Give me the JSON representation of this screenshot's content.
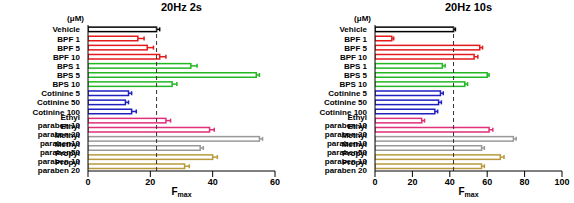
{
  "chart_data": [
    {
      "type": "bar",
      "title": "20Hz 2s",
      "orientation": "horizontal",
      "x_label": "Fmax",
      "y_label": "(μM)",
      "categories": [
        "Vehicle",
        "BPF 1",
        "BPF 5",
        "BPF 10",
        "BPS 1",
        "BPS 5",
        "BPS 10",
        "Cotinine 5",
        "Cotinine 50",
        "Cotinine 100",
        "Ethyl paraben 10",
        "Ethyl paraben 20",
        "Methyl paraben10",
        "Methyl paraben50",
        "Propyl paraben 10",
        "Propyl paraben 20"
      ],
      "values": [
        22,
        16,
        19,
        23,
        33,
        54,
        27,
        13,
        12,
        14,
        25,
        39,
        55,
        36,
        40,
        31
      ],
      "errors": [
        1,
        2,
        2,
        2,
        2,
        1,
        1.5,
        1,
        1,
        1.5,
        1.5,
        1.5,
        1,
        1,
        1.5,
        1.5
      ],
      "colors": [
        "#000000",
        "#e41a1c",
        "#e41a1c",
        "#e41a1c",
        "#22b822",
        "#22b822",
        "#22b822",
        "#2020c0",
        "#2020c0",
        "#2020c0",
        "#e0307a",
        "#e0307a",
        "#999999",
        "#999999",
        "#b89a3c",
        "#b89a3c"
      ],
      "reference_line": 22,
      "xlim": [
        0,
        60
      ],
      "xticks": [
        0,
        20,
        40,
        60
      ],
      "grid": false
    },
    {
      "type": "bar",
      "title": "20Hz 10s",
      "orientation": "horizontal",
      "x_label": "Fmax",
      "y_label": "(μM)",
      "categories": [
        "Vehicle",
        "BPF 1",
        "BPF 5",
        "BPF 10",
        "BPS 1",
        "BPS 5",
        "BPS 10",
        "Cotinine 5",
        "Cotinine 50",
        "Cotinine 100",
        "Ethyl paraben 10",
        "Ethyl paraben 20",
        "Methyl paraben10",
        "Methyl paraben50",
        "Propyl paraben 10",
        "Propyl paraben 20"
      ],
      "values": [
        42,
        9,
        56,
        53,
        36,
        60,
        48,
        35,
        34,
        32,
        25,
        61,
        74,
        57,
        67,
        57
      ],
      "errors": [
        1,
        1,
        1.5,
        2,
        1.5,
        1,
        1.5,
        1.5,
        1.5,
        1.5,
        1.5,
        2,
        1.5,
        1.5,
        2,
        1.5
      ],
      "colors": [
        "#000000",
        "#e41a1c",
        "#e41a1c",
        "#e41a1c",
        "#22b822",
        "#22b822",
        "#22b822",
        "#2020c0",
        "#2020c0",
        "#2020c0",
        "#e0307a",
        "#e0307a",
        "#999999",
        "#999999",
        "#b89a3c",
        "#b89a3c"
      ],
      "reference_line": 42,
      "xlim": [
        0,
        100
      ],
      "xticks": [
        0,
        20,
        40,
        60,
        80,
        100
      ],
      "grid": false
    }
  ]
}
